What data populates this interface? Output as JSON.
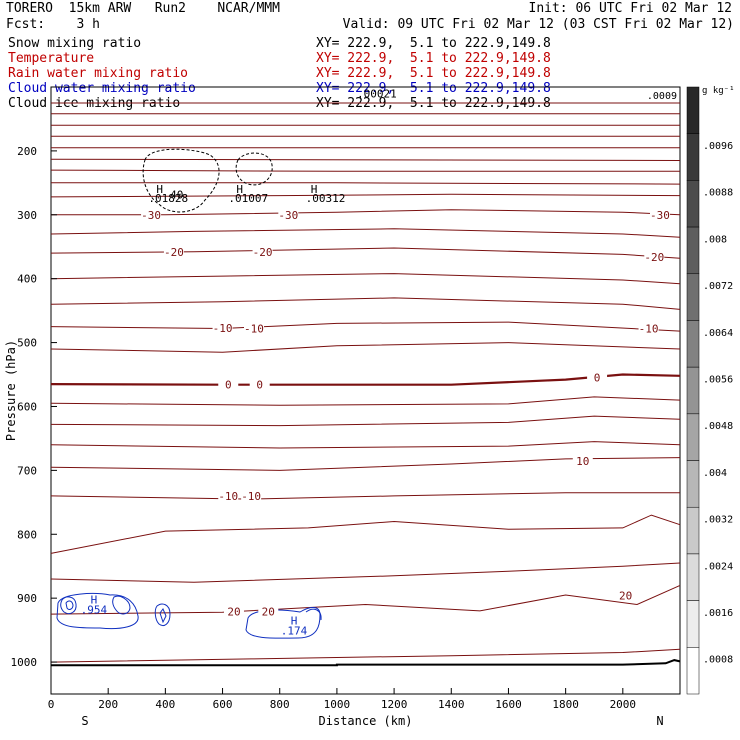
{
  "header": {
    "model": "TORERO  15km ARW   Run2    NCAR/MMM",
    "init": "Init: 06 UTC Fri 02 Mar 12",
    "fcst": "Fcst:    3 h",
    "valid": "Valid: 09 UTC Fri 02 Mar 12 (03 CST Fri 02 Mar 12)"
  },
  "fields": [
    {
      "name": "Snow mixing ratio",
      "xy": "XY= 222.9,  5.1 to 222.9,149.8",
      "color": "#000000"
    },
    {
      "name": "Temperature",
      "xy": "XY= 222.9,  5.1 to 222.9,149.8",
      "color": "#c00000"
    },
    {
      "name": "Rain water mixing ratio",
      "xy": "XY= 222.9,  5.1 to 222.9,149.8",
      "color": "#c00000"
    },
    {
      "name": "Cloud water mixing ratio",
      "xy": "XY= 222.9,  5.1 to 222.9,149.8",
      "color": "#0000c0"
    },
    {
      "name": "Cloud ice mixing ratio",
      "xy": "XY= 222.9,  5.1 to 222.9,149.8",
      "color": "#000000"
    }
  ],
  "chart_data": {
    "type": "contour",
    "xlabel": "Distance (km)",
    "ylabel": "Pressure (hPa)",
    "xlim": [
      0,
      2200
    ],
    "ylim": [
      1050,
      100
    ],
    "x_ticks": [
      0,
      200,
      400,
      600,
      800,
      1000,
      1200,
      1400,
      1600,
      1800,
      2000
    ],
    "y_ticks": [
      200,
      300,
      400,
      500,
      600,
      700,
      800,
      900,
      1000
    ],
    "end_labels": {
      "left": "S",
      "right": "N"
    },
    "temperature_contours": [
      {
        "points": [
          [
            0,
            125
          ],
          [
            2200,
            125
          ]
        ]
      },
      {
        "points": [
          [
            0,
            142
          ],
          [
            2200,
            142
          ]
        ]
      },
      {
        "points": [
          [
            0,
            160
          ],
          [
            2200,
            160
          ]
        ]
      },
      {
        "points": [
          [
            0,
            177
          ],
          [
            2200,
            177
          ]
        ]
      },
      {
        "points": [
          [
            0,
            195
          ],
          [
            2200,
            195
          ]
        ]
      },
      {
        "points": [
          [
            0,
            213
          ],
          [
            2200,
            215
          ]
        ]
      },
      {
        "points": [
          [
            0,
            230
          ],
          [
            1000,
            232
          ],
          [
            2200,
            232
          ]
        ]
      },
      {
        "points": [
          [
            0,
            250
          ],
          [
            1000,
            250
          ],
          [
            2200,
            252
          ]
        ]
      },
      {
        "points": [
          [
            0,
            272
          ],
          [
            800,
            270
          ],
          [
            1400,
            268
          ],
          [
            2200,
            270
          ]
        ]
      },
      {
        "label": "-30",
        "points": [
          [
            0,
            300
          ],
          [
            400,
            300
          ],
          [
            1000,
            296
          ],
          [
            1400,
            292
          ],
          [
            2000,
            296
          ],
          [
            2200,
            300
          ]
        ]
      },
      {
        "points": [
          [
            0,
            330
          ],
          [
            500,
            326
          ],
          [
            1200,
            322
          ],
          [
            2000,
            330
          ],
          [
            2200,
            335
          ]
        ]
      },
      {
        "label": "-20",
        "points": [
          [
            0,
            360
          ],
          [
            500,
            358
          ],
          [
            1200,
            352
          ],
          [
            2000,
            362
          ],
          [
            2200,
            368
          ]
        ]
      },
      {
        "points": [
          [
            0,
            400
          ],
          [
            600,
            396
          ],
          [
            1200,
            392
          ],
          [
            2000,
            402
          ],
          [
            2200,
            408
          ]
        ]
      },
      {
        "points": [
          [
            0,
            440
          ],
          [
            600,
            436
          ],
          [
            1200,
            430
          ],
          [
            2000,
            440
          ],
          [
            2200,
            448
          ]
        ]
      },
      {
        "label": "-10",
        "points": [
          [
            0,
            475
          ],
          [
            600,
            478
          ],
          [
            1000,
            470
          ],
          [
            1600,
            468
          ],
          [
            2200,
            482
          ]
        ]
      },
      {
        "points": [
          [
            0,
            510
          ],
          [
            600,
            515
          ],
          [
            1000,
            505
          ],
          [
            1600,
            500
          ],
          [
            2200,
            510
          ]
        ]
      },
      {
        "label": "0",
        "bold": true,
        "points": [
          [
            0,
            565
          ],
          [
            600,
            566
          ],
          [
            1400,
            566
          ],
          [
            1800,
            558
          ],
          [
            2000,
            550
          ],
          [
            2200,
            552
          ]
        ]
      },
      {
        "points": [
          [
            0,
            595
          ],
          [
            800,
            598
          ],
          [
            1600,
            596
          ],
          [
            1900,
            585
          ],
          [
            2200,
            590
          ]
        ]
      },
      {
        "points": [
          [
            0,
            628
          ],
          [
            800,
            630
          ],
          [
            1600,
            625
          ],
          [
            1900,
            615
          ],
          [
            2200,
            620
          ]
        ]
      },
      {
        "points": [
          [
            0,
            660
          ],
          [
            800,
            665
          ],
          [
            1600,
            662
          ],
          [
            1900,
            655
          ],
          [
            2200,
            660
          ]
        ]
      },
      {
        "label": "10",
        "points": [
          [
            0,
            695
          ],
          [
            800,
            700
          ],
          [
            1400,
            690
          ],
          [
            1800,
            682
          ],
          [
            2200,
            680
          ]
        ]
      },
      {
        "points": [
          [
            0,
            740
          ],
          [
            700,
            745
          ],
          [
            1200,
            740
          ],
          [
            1800,
            735
          ],
          [
            2200,
            735
          ]
        ]
      },
      {
        "points": [
          [
            0,
            830
          ],
          [
            400,
            795
          ],
          [
            900,
            790
          ],
          [
            1200,
            780
          ],
          [
            1600,
            792
          ],
          [
            2000,
            790
          ],
          [
            2100,
            770
          ],
          [
            2200,
            785
          ]
        ]
      },
      {
        "points": [
          [
            0,
            870
          ],
          [
            500,
            875
          ],
          [
            1200,
            865
          ],
          [
            1600,
            858
          ],
          [
            2000,
            850
          ],
          [
            2200,
            845
          ]
        ]
      },
      {
        "label": "20",
        "points": [
          [
            0,
            925
          ],
          [
            600,
            922
          ],
          [
            1100,
            910
          ],
          [
            1500,
            920
          ],
          [
            1800,
            895
          ],
          [
            2050,
            910
          ],
          [
            2200,
            880
          ]
        ]
      },
      {
        "points": [
          [
            0,
            1000
          ],
          [
            700,
            995
          ],
          [
            1400,
            990
          ],
          [
            2000,
            985
          ],
          [
            2200,
            980
          ]
        ]
      }
    ],
    "temperature_labels": [
      {
        "text": "-30",
        "x": 350,
        "p": 300
      },
      {
        "text": "-30",
        "x": 830,
        "p": 300
      },
      {
        "text": "-30",
        "x": 2130,
        "p": 300
      },
      {
        "text": "-20",
        "x": 430,
        "p": 358
      },
      {
        "text": "-20",
        "x": 740,
        "p": 358
      },
      {
        "text": "-20",
        "x": 2110,
        "p": 366
      },
      {
        "text": "-10",
        "x": 600,
        "p": 477
      },
      {
        "text": "-10",
        "x": 710,
        "p": 478
      },
      {
        "text": "-10",
        "x": 2090,
        "p": 478
      },
      {
        "text": "0",
        "x": 620,
        "p": 566
      },
      {
        "text": "0",
        "x": 730,
        "p": 566
      },
      {
        "text": "0",
        "x": 1910,
        "p": 555
      },
      {
        "text": "-10",
        "x": 620,
        "p": 740
      },
      {
        "text": "-10",
        "x": 700,
        "p": 740
      },
      {
        "text": "10",
        "x": 1860,
        "p": 685
      },
      {
        "text": "20",
        "x": 640,
        "p": 921
      },
      {
        "text": "20",
        "x": 760,
        "p": 921
      },
      {
        "text": "20",
        "x": 2010,
        "p": 896
      }
    ],
    "cloud_water_maxima": [
      {
        "text": "H",
        "x": 150,
        "p": 902
      },
      {
        "text": ".954",
        "x": 150,
        "p": 918
      },
      {
        "text": "H",
        "x": 850,
        "p": 935
      },
      {
        "text": ".174",
        "x": 850,
        "p": 951
      }
    ],
    "snow_maxima": [
      {
        "text": "H",
        "x": 380,
        "p": 260
      },
      {
        "text": ".01828",
        "x": 410,
        "p": 274
      },
      {
        "text": "H",
        "x": 660,
        "p": 260
      },
      {
        "text": ".01007",
        "x": 690,
        "p": 274
      },
      {
        "text": "H",
        "x": 920,
        "p": 260
      },
      {
        "text": ".00312",
        "x": 960,
        "p": 274
      },
      {
        "text": ".00021",
        "x": 1140,
        "p": 110
      },
      {
        "text": "40",
        "x": 440,
        "p": 268
      }
    ],
    "colorbar": {
      "unit": "g kg⁻¹",
      "labels": [
        ".0096",
        ".0088",
        ".008",
        ".0072",
        ".0064",
        ".0056",
        ".0048",
        ".004",
        ".0032",
        ".0024",
        ".0016",
        ".0008"
      ],
      "top_label": ".0009"
    }
  }
}
